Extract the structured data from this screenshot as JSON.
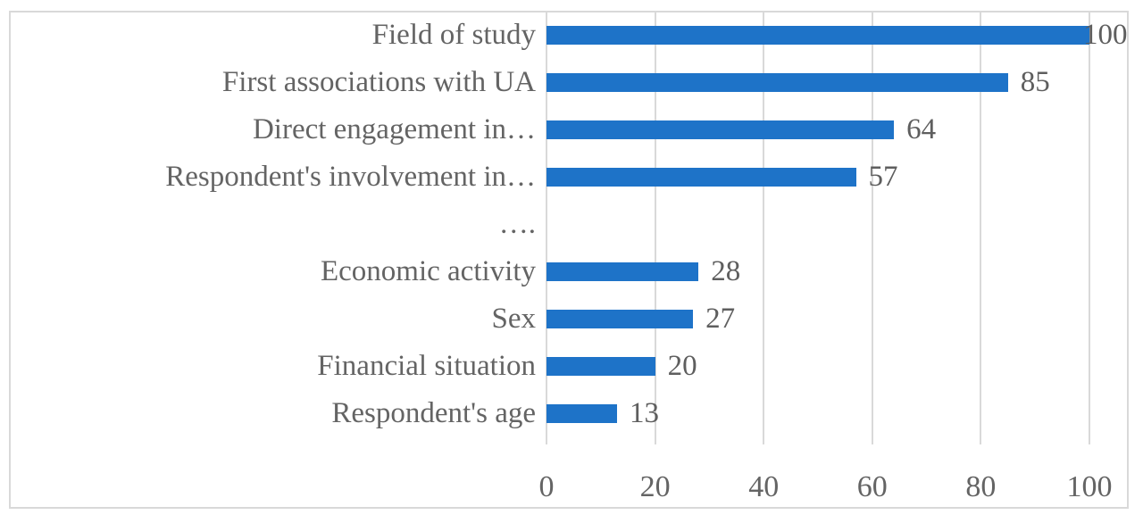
{
  "chart_data": {
    "type": "bar",
    "orientation": "horizontal",
    "title": "",
    "xlabel": "",
    "ylabel": "",
    "categories": [
      "Field of study",
      "First associations with UA",
      "Direct engagement in…",
      "Respondent's involvement in…",
      "….",
      "Economic activity",
      "Sex",
      "Financial situation",
      "Respondent's age"
    ],
    "values": [
      100,
      85,
      64,
      57,
      null,
      28,
      27,
      20,
      13
    ],
    "data_labels": [
      "100",
      "85",
      "64",
      "57",
      "",
      "28",
      "27",
      "20",
      "13"
    ],
    "x_ticks": [
      0,
      20,
      40,
      60,
      80,
      100
    ],
    "xlim": [
      0,
      100
    ],
    "grid": "vertical-gridlines-on",
    "legend": "none",
    "colors": {
      "bar": "#1e73c8",
      "gridline": "#d9d9d9",
      "frame_border": "#d9d9d9",
      "text": "#646464",
      "background": "#ffffff"
    }
  }
}
